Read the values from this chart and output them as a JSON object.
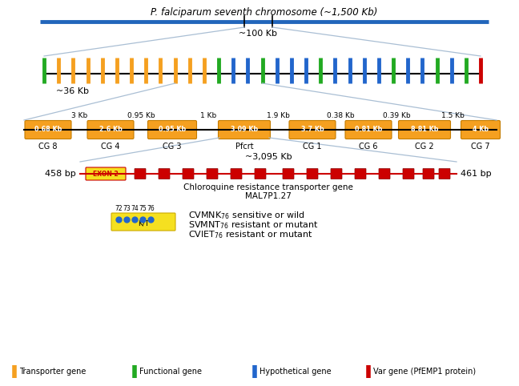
{
  "title_chrom": "P. falciparum seventh chromosome (~1,500 Kb)",
  "label_100kb": "~100 Kb",
  "label_36kb": "~36 Kb",
  "label_3095kb": "~3,095 Kb",
  "chrom_line_color": "#2266bb",
  "tick_colors_sequence": [
    "green",
    "orange",
    "orange",
    "orange",
    "orange",
    "orange",
    "orange",
    "orange",
    "orange",
    "orange",
    "orange",
    "orange",
    "green",
    "blue",
    "blue",
    "green",
    "blue",
    "blue",
    "blue",
    "green",
    "blue",
    "blue",
    "blue",
    "blue",
    "green",
    "blue",
    "blue",
    "green",
    "blue",
    "green",
    "red"
  ],
  "box_color": "#f5a020",
  "box_edge_color": "#c47c00",
  "bg_color": "#ffffff",
  "text_color": "#000000",
  "gene_labels": [
    "0.68 Kb",
    "2.6 Kb",
    "0.95 Kb",
    "3.09 Kb",
    "3.7 Kb",
    "0.81 Kb",
    "8.81 Kb",
    "4 Kb"
  ],
  "name_labels": [
    "CG 8",
    "CG 4",
    "CG 3",
    "Pfcrt",
    "CG 1",
    "CG 6",
    "CG 2",
    "CG 7"
  ],
  "gap_texts": [
    "3 Kb",
    "0.95 Kb",
    "1 Kb",
    "1.9 Kb",
    "0.38 Kb",
    "0.39 Kb",
    "1.5 Kb"
  ],
  "legend_items": [
    {
      "color": "#f5a020",
      "label": "Transporter gene"
    },
    {
      "color": "#22aa22",
      "label": "Functional gene"
    },
    {
      "color": "#2266cc",
      "label": "Hypothetical gene"
    },
    {
      "color": "#cc0000",
      "label": "Var gene (PfEMP1 protein)"
    }
  ]
}
